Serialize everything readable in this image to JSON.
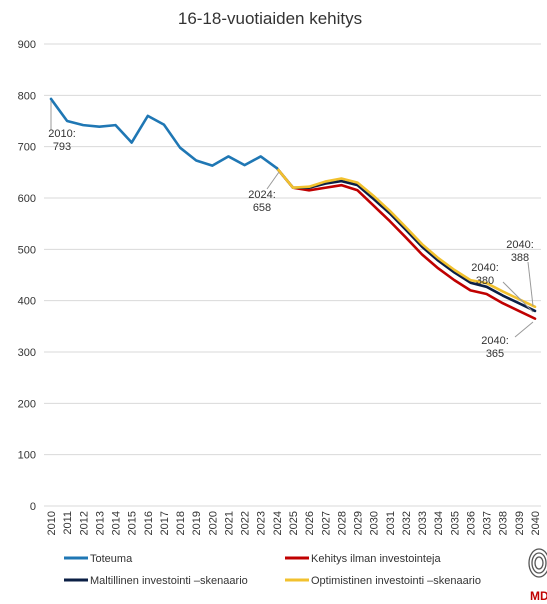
{
  "chart_data": {
    "type": "line",
    "title": "16-18-vuotiaiden kehitys",
    "xlabel": "",
    "ylabel": "",
    "ylim": [
      0,
      900
    ],
    "yticks": [
      0,
      100,
      200,
      300,
      400,
      500,
      600,
      700,
      800,
      900
    ],
    "grid": true,
    "legend_position": "bottom",
    "x": [
      "2010",
      "2011",
      "2012",
      "2013",
      "2014",
      "2015",
      "2016",
      "2017",
      "2018",
      "2019",
      "2020",
      "2021",
      "2022",
      "2023",
      "2024",
      "2025",
      "2026",
      "2027",
      "2028",
      "2029",
      "2030",
      "2031",
      "2032",
      "2033",
      "2034",
      "2035",
      "2036",
      "2037",
      "2038",
      "2039",
      "2040"
    ],
    "series": [
      {
        "name": "Toteuma",
        "color": "#1f77b4",
        "values": [
          793,
          750,
          742,
          739,
          742,
          708,
          760,
          743,
          698,
          673,
          663,
          681,
          664,
          681,
          658,
          null,
          null,
          null,
          null,
          null,
          null,
          null,
          null,
          null,
          null,
          null,
          null,
          null,
          null,
          null,
          null
        ]
      },
      {
        "name": "Kehitys ilman investointeja",
        "color": "#c00000",
        "values": [
          null,
          null,
          null,
          null,
          null,
          null,
          null,
          null,
          null,
          null,
          null,
          null,
          null,
          null,
          658,
          620,
          615,
          620,
          625,
          615,
          585,
          555,
          523,
          490,
          463,
          440,
          420,
          413,
          395,
          380,
          365
        ]
      },
      {
        "name": "Maltillinen investointi –skenaario",
        "color": "#0b1f45",
        "values": [
          null,
          null,
          null,
          null,
          null,
          null,
          null,
          null,
          null,
          null,
          null,
          null,
          null,
          null,
          658,
          620,
          620,
          628,
          633,
          625,
          598,
          570,
          538,
          505,
          478,
          455,
          435,
          427,
          410,
          395,
          380
        ]
      },
      {
        "name": "Optimistinen investointi –skenaario",
        "color": "#f2c12e",
        "values": [
          null,
          null,
          null,
          null,
          null,
          null,
          null,
          null,
          null,
          null,
          null,
          null,
          null,
          null,
          658,
          620,
          622,
          632,
          638,
          630,
          604,
          575,
          543,
          510,
          483,
          460,
          440,
          434,
          418,
          403,
          388
        ]
      }
    ],
    "annotations": [
      {
        "label": "2010:",
        "value": "793"
      },
      {
        "label": "2024:",
        "value": "658"
      },
      {
        "label": "2040:",
        "value": "388"
      },
      {
        "label": "2040:",
        "value": "380"
      },
      {
        "label": "2040:",
        "value": "365"
      }
    ]
  },
  "logo": {
    "text": "MD"
  }
}
